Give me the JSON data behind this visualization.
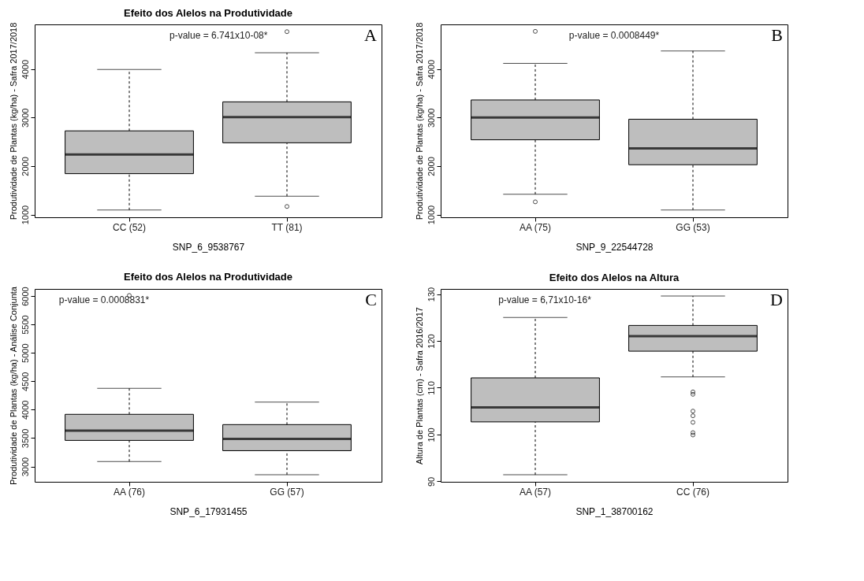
{
  "chart_data": [
    {
      "type": "box",
      "title": "Efeito dos Alelos na Produtividade",
      "xlabel": "SNP_6_9538767",
      "ylabel": "Produtividade de Plantas (kg/ha) - Safra 2017/2018",
      "categories": [
        "CC (52)",
        "TT (81)"
      ],
      "colors": [
        "#bebebe",
        "#bebebe"
      ],
      "boxes": [
        {
          "low": 1095,
          "q1": 1844,
          "median": 2240,
          "q3": 2726,
          "high": 3990
        },
        {
          "low": 1380,
          "q1": 2480,
          "median": 3011,
          "q3": 3324,
          "high": 4335,
          "outliers": [
            1168,
            4770
          ]
        }
      ],
      "ylim": [
        945,
        4920
      ],
      "yticks": [
        1000,
        2000,
        3000,
        4000
      ],
      "annotations": [
        "p-value = 6.741x10-08*",
        "A"
      ],
      "grid": false
    },
    {
      "type": "box",
      "xlabel": "SNP_9_22544728",
      "ylabel": "Produtividade de Plantas (kg/ha) - Safra 2017/2018",
      "categories": [
        "AA (75)",
        "GG (53)"
      ],
      "colors": [
        "#bebebe",
        "#bebebe"
      ],
      "boxes": [
        {
          "low": 1419,
          "q1": 2542,
          "median": 3000,
          "q3": 3363,
          "high": 4117,
          "outliers": [
            1263,
            4777
          ]
        },
        {
          "low": 1095,
          "q1": 2028,
          "median": 2363,
          "q3": 2966,
          "high": 4374
        }
      ],
      "ylim": [
        945,
        4920
      ],
      "yticks": [
        1000,
        2000,
        3000,
        4000
      ],
      "annotations": [
        "p-value = 0.0008449*",
        "B"
      ],
      "grid": false
    },
    {
      "type": "box",
      "title": "Efeito dos Alelos na Produtividade",
      "xlabel": "SNP_6_17931455",
      "ylabel": "Produtividade de Plantas (kg/ha) - Análise Conjunta",
      "categories": [
        "AA (76)",
        "GG (57)"
      ],
      "colors": [
        "#bebebe",
        "#bebebe"
      ],
      "boxes": [
        {
          "low": 3088,
          "q1": 3459,
          "median": 3629,
          "q3": 3918,
          "high": 4376,
          "outliers": [
            6010
          ]
        },
        {
          "low": 2856,
          "q1": 3278,
          "median": 3485,
          "q3": 3737,
          "high": 4134
        }
      ],
      "ylim": [
        2730,
        6125
      ],
      "yticks": [
        3000,
        3500,
        4000,
        4500,
        5000,
        5500,
        6000
      ],
      "annotations": [
        "p-value = 0.0008831*",
        "C"
      ],
      "grid": false
    },
    {
      "type": "box",
      "title": "Efeito dos Alelos na Altura",
      "xlabel": "SNP_1_38700162",
      "ylabel": "Altura de Plantas (cm) - Safra 2016/2017",
      "categories": [
        "AA (57)",
        "CC (76)"
      ],
      "colors": [
        "#bebebe",
        "#bebebe"
      ],
      "boxes": [
        {
          "low": 91.4,
          "q1": 102.7,
          "median": 105.8,
          "q3": 112.1,
          "high": 125.0
        },
        {
          "low": 112.3,
          "q1": 117.8,
          "median": 121.0,
          "q3": 123.3,
          "high": 129.6,
          "outliers": [
            109.1,
            108.6,
            105.0,
            104.0,
            102.6,
            100.4,
            99.9
          ]
        }
      ],
      "ylim": [
        89.9,
        131.1
      ],
      "yticks": [
        90,
        100,
        110,
        120,
        130
      ],
      "annotations": [
        "p-value = 6,71x10-16*",
        "D"
      ],
      "grid": false
    }
  ]
}
